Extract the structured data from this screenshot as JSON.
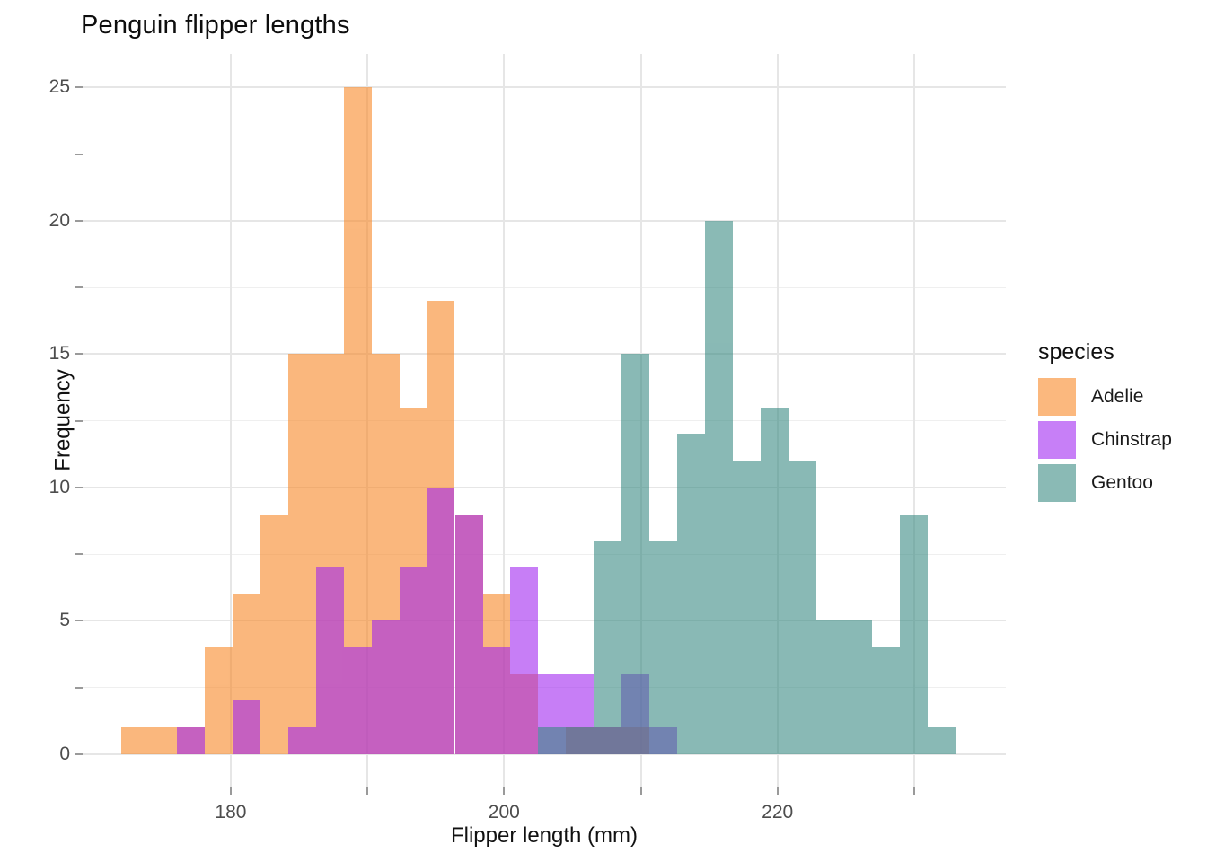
{
  "chart_data": {
    "type": "bar",
    "subtype": "overlaid-histogram",
    "title": "Penguin flipper lengths",
    "xlabel": "Flipper length (mm)",
    "ylabel": "Frequency",
    "grid": true,
    "legend": {
      "title": "species",
      "position": "right",
      "entries": [
        {
          "key": "adelie",
          "label": "Adelie",
          "base_color": "#F88521",
          "rendered_color": "#FBB87E"
        },
        {
          "key": "chinstrap",
          "label": "Chinstrap",
          "base_color": "#9F23F1",
          "rendered_color": "#C77FF7"
        },
        {
          "key": "gentoo",
          "label": "Gentoo",
          "base_color": "#358880",
          "rendered_color": "#8ABAB5"
        }
      ]
    },
    "fill_alpha": 0.58,
    "bin_width": 2.0345,
    "bins": [
      {
        "x0": 171.98,
        "adelie": 1,
        "chinstrap": 0,
        "gentoo": 0
      },
      {
        "x0": 174.01,
        "adelie": 1,
        "chinstrap": 0,
        "gentoo": 0
      },
      {
        "x0": 176.05,
        "adelie": 1,
        "chinstrap": 1,
        "gentoo": 0
      },
      {
        "x0": 178.08,
        "adelie": 4,
        "chinstrap": 0,
        "gentoo": 0
      },
      {
        "x0": 180.12,
        "adelie": 6,
        "chinstrap": 2,
        "gentoo": 0
      },
      {
        "x0": 182.15,
        "adelie": 9,
        "chinstrap": 0,
        "gentoo": 0
      },
      {
        "x0": 184.19,
        "adelie": 15,
        "chinstrap": 1,
        "gentoo": 0
      },
      {
        "x0": 186.22,
        "adelie": 15,
        "chinstrap": 7,
        "gentoo": 0
      },
      {
        "x0": 188.26,
        "adelie": 25,
        "chinstrap": 4,
        "gentoo": 0
      },
      {
        "x0": 190.29,
        "adelie": 15,
        "chinstrap": 5,
        "gentoo": 0
      },
      {
        "x0": 192.33,
        "adelie": 13,
        "chinstrap": 7,
        "gentoo": 0
      },
      {
        "x0": 194.36,
        "adelie": 17,
        "chinstrap": 10,
        "gentoo": 0
      },
      {
        "x0": 196.4,
        "adelie": 9,
        "chinstrap": 9,
        "gentoo": 0
      },
      {
        "x0": 198.43,
        "adelie": 6,
        "chinstrap": 4,
        "gentoo": 0
      },
      {
        "x0": 200.46,
        "adelie": 3,
        "chinstrap": 7,
        "gentoo": 0
      },
      {
        "x0": 202.5,
        "adelie": 0,
        "chinstrap": 3,
        "gentoo": 1
      },
      {
        "x0": 204.53,
        "adelie": 1,
        "chinstrap": 3,
        "gentoo": 1
      },
      {
        "x0": 206.57,
        "adelie": 1,
        "chinstrap": 1,
        "gentoo": 8
      },
      {
        "x0": 208.6,
        "adelie": 1,
        "chinstrap": 3,
        "gentoo": 15
      },
      {
        "x0": 210.64,
        "adelie": 0,
        "chinstrap": 1,
        "gentoo": 8
      },
      {
        "x0": 212.67,
        "adelie": 0,
        "chinstrap": 0,
        "gentoo": 12
      },
      {
        "x0": 214.71,
        "adelie": 0,
        "chinstrap": 0,
        "gentoo": 20
      },
      {
        "x0": 216.74,
        "adelie": 0,
        "chinstrap": 0,
        "gentoo": 11
      },
      {
        "x0": 218.78,
        "adelie": 0,
        "chinstrap": 0,
        "gentoo": 13
      },
      {
        "x0": 220.81,
        "adelie": 0,
        "chinstrap": 0,
        "gentoo": 11
      },
      {
        "x0": 222.85,
        "adelie": 0,
        "chinstrap": 0,
        "gentoo": 5
      },
      {
        "x0": 224.88,
        "adelie": 0,
        "chinstrap": 0,
        "gentoo": 5
      },
      {
        "x0": 226.92,
        "adelie": 0,
        "chinstrap": 0,
        "gentoo": 4
      },
      {
        "x0": 228.95,
        "adelie": 0,
        "chinstrap": 0,
        "gentoo": 9
      },
      {
        "x0": 230.98,
        "adelie": 0,
        "chinstrap": 0,
        "gentoo": 1
      }
    ],
    "x_ticks": [
      {
        "value": 180,
        "label": "180"
      },
      {
        "value": 190,
        "label": ""
      },
      {
        "value": 200,
        "label": "200"
      },
      {
        "value": 210,
        "label": ""
      },
      {
        "value": 220,
        "label": "220"
      },
      {
        "value": 230,
        "label": ""
      }
    ],
    "y_ticks": [
      {
        "value": 0,
        "label": "0"
      },
      {
        "value": 2.5,
        "label": ""
      },
      {
        "value": 5,
        "label": "5"
      },
      {
        "value": 7.5,
        "label": ""
      },
      {
        "value": 10,
        "label": "10"
      },
      {
        "value": 12.5,
        "label": ""
      },
      {
        "value": 15,
        "label": "15"
      },
      {
        "value": 17.5,
        "label": ""
      },
      {
        "value": 20,
        "label": "20"
      },
      {
        "value": 22.5,
        "label": ""
      },
      {
        "value": 25,
        "label": "25"
      }
    ],
    "ylim": [
      0,
      25
    ],
    "axis_range_x": [
      169.16,
      236.71
    ],
    "axis_range_y": [
      -1.25,
      26.26
    ]
  }
}
